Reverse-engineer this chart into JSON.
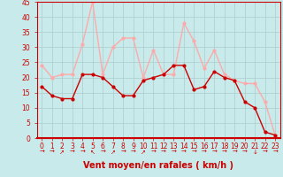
{
  "title": "",
  "xlabel": "Vent moyen/en rafales ( km/h )",
  "x": [
    0,
    1,
    2,
    3,
    4,
    5,
    6,
    7,
    8,
    9,
    10,
    11,
    12,
    13,
    14,
    15,
    16,
    17,
    18,
    19,
    20,
    21,
    22,
    23
  ],
  "y_mean": [
    17,
    14,
    13,
    13,
    21,
    21,
    20,
    17,
    14,
    14,
    19,
    20,
    21,
    24,
    24,
    16,
    17,
    22,
    20,
    19,
    12,
    10,
    2,
    1
  ],
  "y_gust": [
    24,
    20,
    21,
    21,
    31,
    45,
    21,
    30,
    33,
    33,
    20,
    29,
    21,
    21,
    38,
    32,
    23,
    29,
    21,
    19,
    18,
    18,
    12,
    1
  ],
  "mean_color": "#cc0000",
  "gust_color": "#ffaaaa",
  "bg_color": "#c8eaea",
  "grid_color": "#aacccc",
  "axis_color": "#cc0000",
  "ylim": [
    0,
    45
  ],
  "yticks": [
    0,
    5,
    10,
    15,
    20,
    25,
    30,
    35,
    40,
    45
  ],
  "xticks": [
    0,
    1,
    2,
    3,
    4,
    5,
    6,
    7,
    8,
    9,
    10,
    11,
    12,
    13,
    14,
    15,
    16,
    17,
    18,
    19,
    20,
    21,
    22,
    23
  ],
  "xlabel_fontsize": 7,
  "tick_fontsize": 5.5,
  "marker_size": 2,
  "line_width": 1.0,
  "arrow_symbols": [
    "→",
    "→",
    "↗",
    "→",
    "→",
    "↖",
    "→",
    "↗",
    "→",
    "→",
    "↗",
    "→",
    "→",
    "→",
    "→",
    "→",
    "→",
    "→",
    "→",
    "→",
    "→",
    "↓",
    "→",
    "→"
  ]
}
